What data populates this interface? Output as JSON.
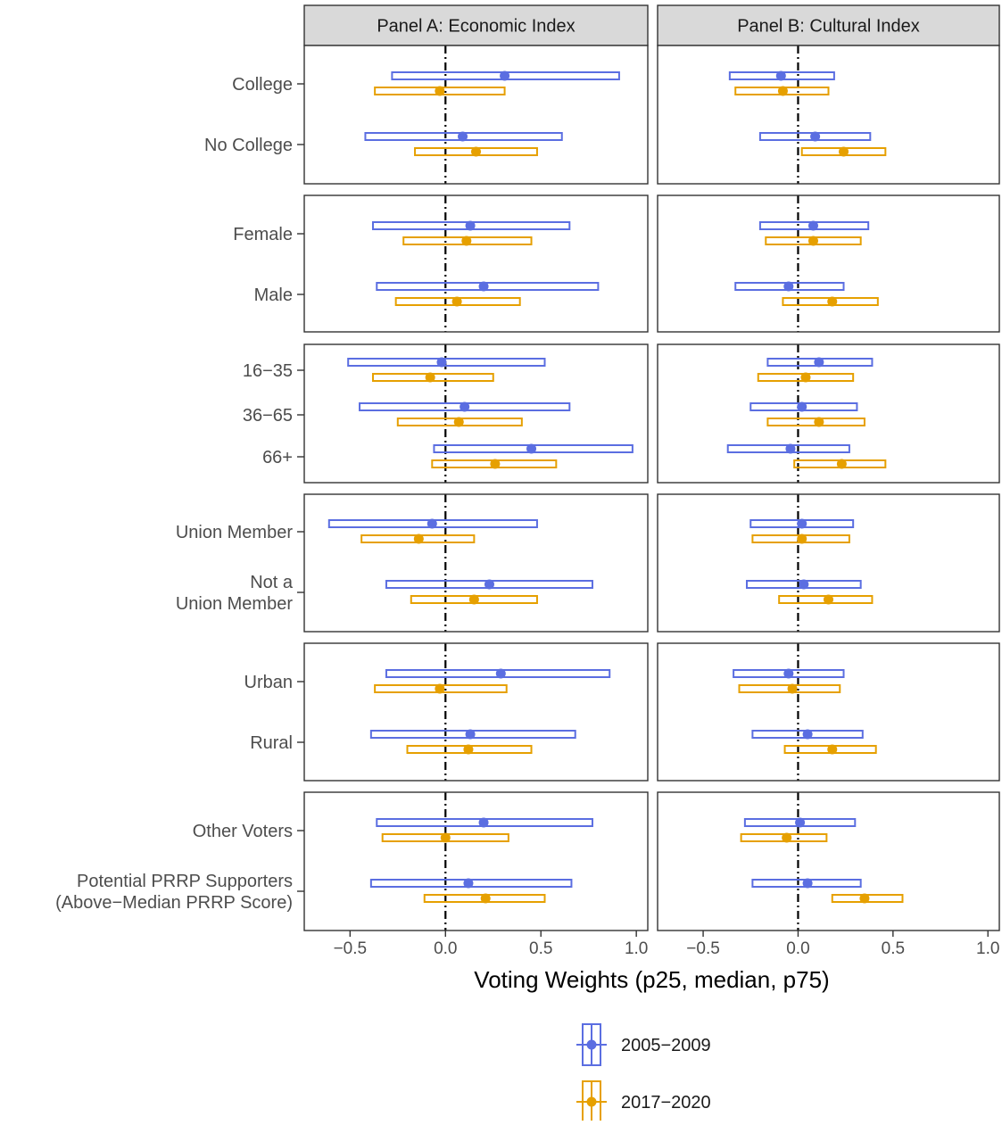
{
  "chart_data": {
    "type": "interval",
    "panels": [
      {
        "title": "Panel A: Economic Index"
      },
      {
        "title": "Panel B: Cultural Index"
      }
    ],
    "xlabel": "Voting Weights (p25, median, p75)",
    "xlim": [
      -0.74,
      1.06
    ],
    "xticks": [
      -0.5,
      0.0,
      0.5,
      1.0
    ],
    "xtick_labels": [
      "−0.5",
      "0.0",
      "0.5",
      "1.0"
    ],
    "reference_line_x": 0,
    "series": [
      {
        "name": "2005−2009",
        "color": "#5B6EE1"
      },
      {
        "name": "2017−2020",
        "color": "#E6A000"
      }
    ],
    "legend_position": "bottom",
    "groups": [
      {
        "rows": [
          {
            "label": "College",
            "A": [
              [
                -0.28,
                0.31,
                0.91
              ],
              [
                -0.37,
                -0.03,
                0.31
              ]
            ],
            "B": [
              [
                -0.36,
                -0.09,
                0.19
              ],
              [
                -0.33,
                -0.08,
                0.16
              ]
            ]
          },
          {
            "label": "No College",
            "A": [
              [
                -0.42,
                0.09,
                0.61
              ],
              [
                -0.16,
                0.16,
                0.48
              ]
            ],
            "B": [
              [
                -0.2,
                0.09,
                0.38
              ],
              [
                0.02,
                0.24,
                0.46
              ]
            ]
          }
        ]
      },
      {
        "rows": [
          {
            "label": "Female",
            "A": [
              [
                -0.38,
                0.13,
                0.65
              ],
              [
                -0.22,
                0.11,
                0.45
              ]
            ],
            "B": [
              [
                -0.2,
                0.08,
                0.37
              ],
              [
                -0.17,
                0.08,
                0.33
              ]
            ]
          },
          {
            "label": "Male",
            "A": [
              [
                -0.36,
                0.2,
                0.8
              ],
              [
                -0.26,
                0.06,
                0.39
              ]
            ],
            "B": [
              [
                -0.33,
                -0.05,
                0.24
              ],
              [
                -0.08,
                0.18,
                0.42
              ]
            ]
          }
        ]
      },
      {
        "rows": [
          {
            "label": "16−35",
            "A": [
              [
                -0.51,
                -0.02,
                0.52
              ],
              [
                -0.38,
                -0.08,
                0.25
              ]
            ],
            "B": [
              [
                -0.16,
                0.11,
                0.39
              ],
              [
                -0.21,
                0.04,
                0.29
              ]
            ]
          },
          {
            "label": "36−65",
            "A": [
              [
                -0.45,
                0.1,
                0.65
              ],
              [
                -0.25,
                0.07,
                0.4
              ]
            ],
            "B": [
              [
                -0.25,
                0.02,
                0.31
              ],
              [
                -0.16,
                0.11,
                0.35
              ]
            ]
          },
          {
            "label": "66+",
            "A": [
              [
                -0.06,
                0.45,
                0.98
              ],
              [
                -0.07,
                0.26,
                0.58
              ]
            ],
            "B": [
              [
                -0.37,
                -0.04,
                0.27
              ],
              [
                -0.02,
                0.23,
                0.46
              ]
            ]
          }
        ]
      },
      {
        "rows": [
          {
            "label": "Union Member",
            "A": [
              [
                -0.61,
                -0.07,
                0.48
              ],
              [
                -0.44,
                -0.14,
                0.15
              ]
            ],
            "B": [
              [
                -0.25,
                0.02,
                0.29
              ],
              [
                -0.24,
                0.02,
                0.27
              ]
            ]
          },
          {
            "label": "Not a\nUnion Member",
            "A": [
              [
                -0.31,
                0.23,
                0.77
              ],
              [
                -0.18,
                0.15,
                0.48
              ]
            ],
            "B": [
              [
                -0.27,
                0.03,
                0.33
              ],
              [
                -0.1,
                0.16,
                0.39
              ]
            ]
          }
        ]
      },
      {
        "rows": [
          {
            "label": "Urban",
            "A": [
              [
                -0.31,
                0.29,
                0.86
              ],
              [
                -0.37,
                -0.03,
                0.32
              ]
            ],
            "B": [
              [
                -0.34,
                -0.05,
                0.24
              ],
              [
                -0.31,
                -0.03,
                0.22
              ]
            ]
          },
          {
            "label": "Rural",
            "A": [
              [
                -0.39,
                0.13,
                0.68
              ],
              [
                -0.2,
                0.12,
                0.45
              ]
            ],
            "B": [
              [
                -0.24,
                0.05,
                0.34
              ],
              [
                -0.07,
                0.18,
                0.41
              ]
            ]
          }
        ]
      },
      {
        "rows": [
          {
            "label": "Other Voters",
            "A": [
              [
                -0.36,
                0.2,
                0.77
              ],
              [
                -0.33,
                0.0,
                0.33
              ]
            ],
            "B": [
              [
                -0.28,
                0.01,
                0.3
              ],
              [
                -0.3,
                -0.06,
                0.15
              ]
            ]
          },
          {
            "label": "Potential PRRP Supporters\n(Above−Median PRRP Score)",
            "A": [
              [
                -0.39,
                0.12,
                0.66
              ],
              [
                -0.11,
                0.21,
                0.52
              ]
            ],
            "B": [
              [
                -0.24,
                0.05,
                0.33
              ],
              [
                0.18,
                0.35,
                0.55
              ]
            ]
          }
        ]
      }
    ]
  }
}
